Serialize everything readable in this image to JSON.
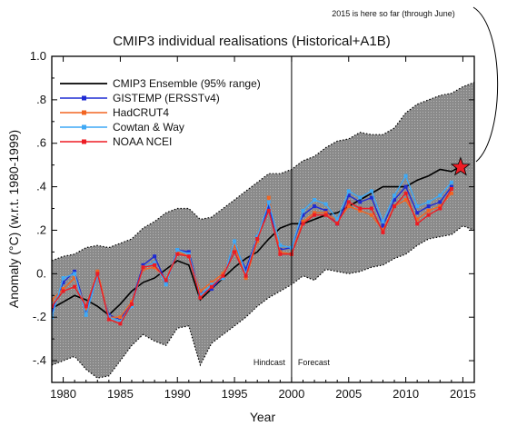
{
  "chart_data": {
    "type": "line",
    "title": "CMIP3 individual realisations (Historical+A1B)",
    "xlabel": "Year",
    "ylabel": "Anomaly (°C) (w.r.t. 1980-1999)",
    "xlim": [
      1979,
      2016
    ],
    "ylim": [
      -0.5,
      1.0
    ],
    "x_ticks": [
      1980,
      1985,
      1990,
      1995,
      2000,
      2005,
      2010,
      2015
    ],
    "y_ticks": [
      {
        "value": 1.0,
        "label": "1.0"
      },
      {
        "value": 0.8,
        "label": ".8"
      },
      {
        "value": 0.6,
        "label": ".6"
      },
      {
        "value": 0.4,
        "label": ".4"
      },
      {
        "value": 0.2,
        "label": ".2"
      },
      {
        "value": 0.0,
        "label": "0."
      },
      {
        "value": -0.2,
        "label": "-.2"
      },
      {
        "value": -0.4,
        "label": "-.4"
      }
    ],
    "grid": false,
    "legend_position": "top-left",
    "divider": {
      "x": 2000,
      "left_label": "Hindcast",
      "right_label": "Forecast"
    },
    "annotation": {
      "text": "2015 is here so far (through June)",
      "x": 2014.8,
      "y": 0.49,
      "marker": "star",
      "color": "#ee1c25"
    },
    "envelope": {
      "name": "",
      "color": "#8c8c8c",
      "x": [
        1979,
        1980,
        1981,
        1982,
        1983,
        1984,
        1985,
        1986,
        1987,
        1988,
        1989,
        1990,
        1991,
        1992,
        1993,
        1994,
        1995,
        1996,
        1997,
        1998,
        1999,
        2000,
        2001,
        2002,
        2003,
        2004,
        2005,
        2006,
        2007,
        2008,
        2009,
        2010,
        2011,
        2012,
        2013,
        2014,
        2015,
        2016
      ],
      "upper": [
        0.06,
        0.08,
        0.09,
        0.12,
        0.13,
        0.12,
        0.14,
        0.16,
        0.21,
        0.24,
        0.28,
        0.3,
        0.3,
        0.25,
        0.26,
        0.3,
        0.34,
        0.38,
        0.42,
        0.46,
        0.46,
        0.48,
        0.52,
        0.54,
        0.58,
        0.61,
        0.62,
        0.65,
        0.64,
        0.64,
        0.67,
        0.74,
        0.78,
        0.8,
        0.82,
        0.83,
        0.86,
        0.88
      ],
      "lower": [
        -0.42,
        -0.4,
        -0.38,
        -0.44,
        -0.48,
        -0.47,
        -0.4,
        -0.33,
        -0.28,
        -0.31,
        -0.33,
        -0.25,
        -0.24,
        -0.42,
        -0.32,
        -0.28,
        -0.24,
        -0.2,
        -0.15,
        -0.11,
        -0.08,
        -0.05,
        -0.01,
        -0.03,
        0.02,
        0.01,
        0.0,
        0.01,
        0.03,
        0.04,
        0.07,
        0.09,
        0.13,
        0.16,
        0.17,
        0.18,
        0.22,
        0.2
      ]
    },
    "series": [
      {
        "name": "CMIP3 Ensemble (95% range)",
        "color": "#000000",
        "marker": "none",
        "x": [
          1979,
          1980,
          1981,
          1982,
          1983,
          1984,
          1985,
          1986,
          1987,
          1988,
          1989,
          1990,
          1991,
          1992,
          1993,
          1994,
          1995,
          1996,
          1997,
          1998,
          1999,
          2000,
          2001,
          2002,
          2003,
          2004,
          2005,
          2006,
          2007,
          2008,
          2009,
          2010,
          2011,
          2012,
          2013,
          2014,
          2015
        ],
        "y": [
          -0.16,
          -0.13,
          -0.1,
          -0.12,
          -0.15,
          -0.19,
          -0.14,
          -0.08,
          -0.04,
          -0.02,
          0.02,
          0.06,
          0.04,
          -0.12,
          -0.07,
          -0.02,
          0.03,
          0.07,
          0.1,
          0.16,
          0.21,
          0.23,
          0.23,
          0.25,
          0.27,
          0.28,
          0.31,
          0.34,
          0.37,
          0.4,
          0.4,
          0.4,
          0.43,
          0.45,
          0.48,
          0.47,
          0.5
        ]
      },
      {
        "name": "GISTEMP (ERSSTv4)",
        "color": "#1f2bd3",
        "marker": "square",
        "x": [
          1979,
          1980,
          1981,
          1982,
          1983,
          1984,
          1985,
          1986,
          1987,
          1988,
          1989,
          1990,
          1991,
          1992,
          1993,
          1994,
          1995,
          1996,
          1997,
          1998,
          1999,
          2000,
          2001,
          2002,
          2003,
          2004,
          2005,
          2006,
          2007,
          2008,
          2009,
          2010,
          2011,
          2012,
          2013,
          2014
        ],
        "y": [
          -0.18,
          -0.04,
          0.01,
          -0.17,
          -0.01,
          -0.19,
          -0.21,
          -0.13,
          0.04,
          0.08,
          -0.04,
          0.11,
          0.1,
          -0.09,
          -0.07,
          -0.01,
          0.13,
          0.02,
          0.17,
          0.31,
          0.11,
          0.12,
          0.27,
          0.31,
          0.29,
          0.23,
          0.36,
          0.33,
          0.35,
          0.22,
          0.34,
          0.4,
          0.28,
          0.31,
          0.33,
          0.4
        ]
      },
      {
        "name": "HadCRUT4",
        "color": "#f26522",
        "marker": "square",
        "x": [
          1979,
          1980,
          1981,
          1982,
          1983,
          1984,
          1985,
          1986,
          1987,
          1988,
          1989,
          1990,
          1991,
          1992,
          1993,
          1994,
          1995,
          1996,
          1997,
          1998,
          1999,
          2000,
          2001,
          2002,
          2003,
          2004,
          2005,
          2006,
          2007,
          2008,
          2009,
          2010,
          2011,
          2012,
          2013,
          2014
        ],
        "y": [
          -0.12,
          -0.07,
          -0.02,
          -0.16,
          0.01,
          -0.2,
          -0.2,
          -0.13,
          0.02,
          0.03,
          -0.03,
          0.1,
          0.08,
          -0.08,
          -0.04,
          0.0,
          0.13,
          -0.02,
          0.15,
          0.35,
          0.1,
          0.09,
          0.24,
          0.28,
          0.28,
          0.24,
          0.31,
          0.29,
          0.27,
          0.2,
          0.31,
          0.34,
          0.25,
          0.29,
          0.31,
          0.37
        ]
      },
      {
        "name": "Cowtan & Way",
        "color": "#3fa9f5",
        "marker": "square",
        "x": [
          1979,
          1980,
          1981,
          1982,
          1983,
          1984,
          1985,
          1986,
          1987,
          1988,
          1989,
          1990,
          1991,
          1992,
          1993,
          1994,
          1995,
          1996,
          1997,
          1998,
          1999,
          2000,
          2001,
          2002,
          2003,
          2004,
          2005,
          2006,
          2007,
          2008,
          2009,
          2010,
          2011,
          2012,
          2013,
          2014
        ],
        "y": [
          -0.2,
          -0.02,
          0.0,
          -0.19,
          -0.01,
          -0.2,
          -0.22,
          -0.15,
          0.03,
          0.05,
          -0.05,
          0.11,
          0.09,
          -0.1,
          -0.05,
          -0.02,
          0.15,
          0.0,
          0.17,
          0.33,
          0.13,
          0.12,
          0.29,
          0.34,
          0.32,
          0.25,
          0.38,
          0.35,
          0.38,
          0.24,
          0.36,
          0.45,
          0.31,
          0.33,
          0.36,
          0.42
        ]
      },
      {
        "name": "NOAA NCEI",
        "color": "#ed1c24",
        "marker": "square",
        "x": [
          1979,
          1980,
          1981,
          1982,
          1983,
          1984,
          1985,
          1986,
          1987,
          1988,
          1989,
          1990,
          1991,
          1992,
          1993,
          1994,
          1995,
          1996,
          1997,
          1998,
          1999,
          2000,
          2001,
          2002,
          2003,
          2004,
          2005,
          2006,
          2007,
          2008,
          2009,
          2010,
          2011,
          2012,
          2013,
          2014
        ],
        "y": [
          -0.15,
          -0.08,
          -0.06,
          -0.15,
          0.0,
          -0.21,
          -0.23,
          -0.14,
          0.03,
          0.04,
          -0.03,
          0.09,
          0.08,
          -0.11,
          -0.06,
          -0.01,
          0.1,
          -0.01,
          0.16,
          0.29,
          0.09,
          0.09,
          0.23,
          0.27,
          0.27,
          0.23,
          0.33,
          0.3,
          0.3,
          0.19,
          0.31,
          0.37,
          0.23,
          0.27,
          0.3,
          0.39
        ]
      }
    ]
  }
}
